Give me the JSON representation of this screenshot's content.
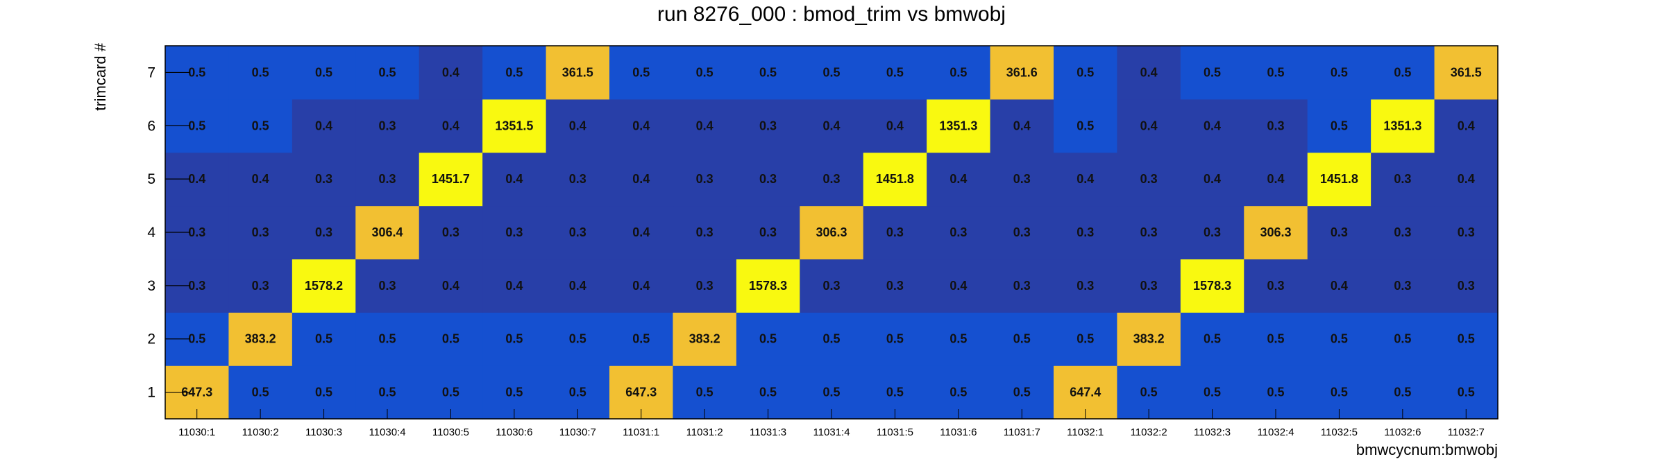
{
  "chart_data": {
    "type": "heatmap",
    "title": "run 8276_000 : bmod_trim vs bmwobj",
    "xlabel": "bmwcycnum:bmwobj",
    "ylabel": "trimcard #",
    "x_categories": [
      "11030:1",
      "11030:2",
      "11030:3",
      "11030:4",
      "11030:5",
      "11030:6",
      "11030:7",
      "11031:1",
      "11031:2",
      "11031:3",
      "11031:4",
      "11031:5",
      "11031:6",
      "11031:7",
      "11032:1",
      "11032:2",
      "11032:3",
      "11032:4",
      "11032:5",
      "11032:6",
      "11032:7"
    ],
    "y_categories": [
      "1",
      "2",
      "3",
      "4",
      "5",
      "6",
      "7"
    ],
    "values": [
      [
        "647.3",
        "0.5",
        "0.5",
        "0.5",
        "0.5",
        "0.5",
        "0.5",
        "647.3",
        "0.5",
        "0.5",
        "0.5",
        "0.5",
        "0.5",
        "0.5",
        "647.4",
        "0.5",
        "0.5",
        "0.5",
        "0.5",
        "0.5",
        "0.5"
      ],
      [
        "0.5",
        "383.2",
        "0.5",
        "0.5",
        "0.5",
        "0.5",
        "0.5",
        "0.5",
        "383.2",
        "0.5",
        "0.5",
        "0.5",
        "0.5",
        "0.5",
        "0.5",
        "383.2",
        "0.5",
        "0.5",
        "0.5",
        "0.5",
        "0.5"
      ],
      [
        "0.3",
        "0.3",
        "1578.2",
        "0.3",
        "0.4",
        "0.4",
        "0.4",
        "0.4",
        "0.3",
        "1578.3",
        "0.3",
        "0.3",
        "0.4",
        "0.3",
        "0.3",
        "0.3",
        "1578.3",
        "0.3",
        "0.4",
        "0.3",
        "0.3"
      ],
      [
        "0.3",
        "0.3",
        "0.3",
        "306.4",
        "0.3",
        "0.3",
        "0.3",
        "0.4",
        "0.3",
        "0.3",
        "306.3",
        "0.3",
        "0.3",
        "0.3",
        "0.3",
        "0.3",
        "0.3",
        "306.3",
        "0.3",
        "0.3",
        "0.3"
      ],
      [
        "0.4",
        "0.4",
        "0.3",
        "0.3",
        "1451.7",
        "0.4",
        "0.3",
        "0.4",
        "0.3",
        "0.3",
        "0.3",
        "1451.8",
        "0.4",
        "0.3",
        "0.4",
        "0.3",
        "0.4",
        "0.4",
        "1451.8",
        "0.3",
        "0.4"
      ],
      [
        "0.5",
        "0.5",
        "0.4",
        "0.3",
        "0.4",
        "1351.5",
        "0.4",
        "0.4",
        "0.4",
        "0.3",
        "0.4",
        "0.4",
        "1351.3",
        "0.4",
        "0.5",
        "0.4",
        "0.4",
        "0.3",
        "0.5",
        "1351.3",
        "0.4"
      ],
      [
        "0.5",
        "0.5",
        "0.5",
        "0.5",
        "0.4",
        "0.5",
        "361.5",
        "0.5",
        "0.5",
        "0.5",
        "0.5",
        "0.5",
        "0.5",
        "361.6",
        "0.5",
        "0.4",
        "0.5",
        "0.5",
        "0.5",
        "0.5",
        "361.5"
      ]
    ],
    "colors": {
      "low": "#283fa8",
      "mid": "#1550d0",
      "high": "#f2c032",
      "max": "#f9f910",
      "frame": "#000000"
    },
    "legend": "none",
    "grid": false
  }
}
